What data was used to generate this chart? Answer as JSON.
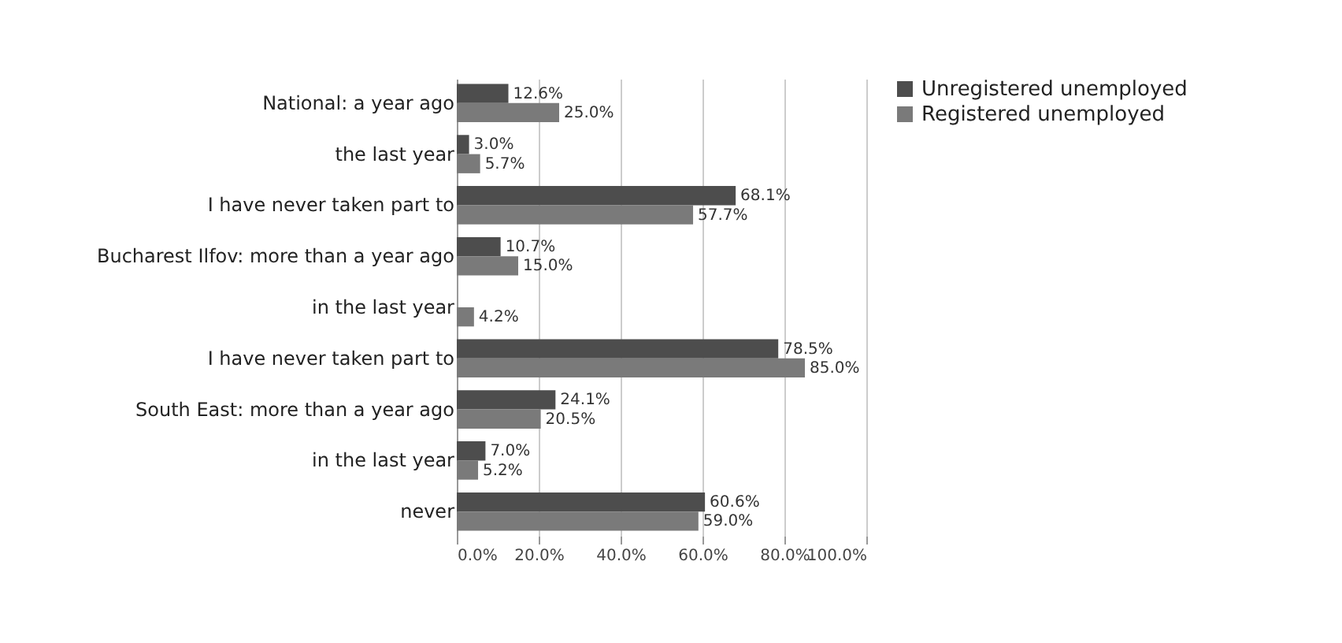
{
  "chart_data": {
    "type": "bar",
    "orientation": "horizontal",
    "categories": [
      "National: a year ago",
      "the last year",
      "I have never taken part to",
      "Bucharest Ilfov: more than a year ago",
      "in the last year",
      "I have never taken part to",
      "South East: more than a year ago",
      "in the last year",
      "never"
    ],
    "series": [
      {
        "name": "Unregistered unemployed",
        "color": "#4d4d4d",
        "values": [
          12.6,
          3.0,
          68.1,
          10.7,
          null,
          78.5,
          24.1,
          7.0,
          60.6
        ],
        "value_labels": [
          "12.6%",
          "3.0%",
          "68.1%",
          "10.7%",
          null,
          "78.5%",
          "24.1%",
          "7.0%",
          "60.6%"
        ]
      },
      {
        "name": "Registered unemployed",
        "color": "#7a7a7a",
        "values": [
          25.0,
          5.7,
          57.7,
          15.0,
          4.2,
          85.0,
          20.5,
          5.2,
          59.0
        ],
        "value_labels": [
          "25.0%",
          "5.7%",
          "57.7%",
          "15.0%",
          "4.2%",
          "85.0%",
          "20.5%",
          "5.2%",
          "59.0%"
        ]
      }
    ],
    "xlim": [
      0,
      100
    ],
    "xticks": [
      {
        "value": 0,
        "label": "0.0%"
      },
      {
        "value": 20,
        "label": "20.0%"
      },
      {
        "value": 40,
        "label": "40.0%"
      },
      {
        "value": 60,
        "label": "60.0%"
      },
      {
        "value": 80,
        "label": "80.0%"
      },
      {
        "value": 100,
        "label": "100.0%"
      }
    ],
    "grid": "x",
    "legend": "right"
  }
}
